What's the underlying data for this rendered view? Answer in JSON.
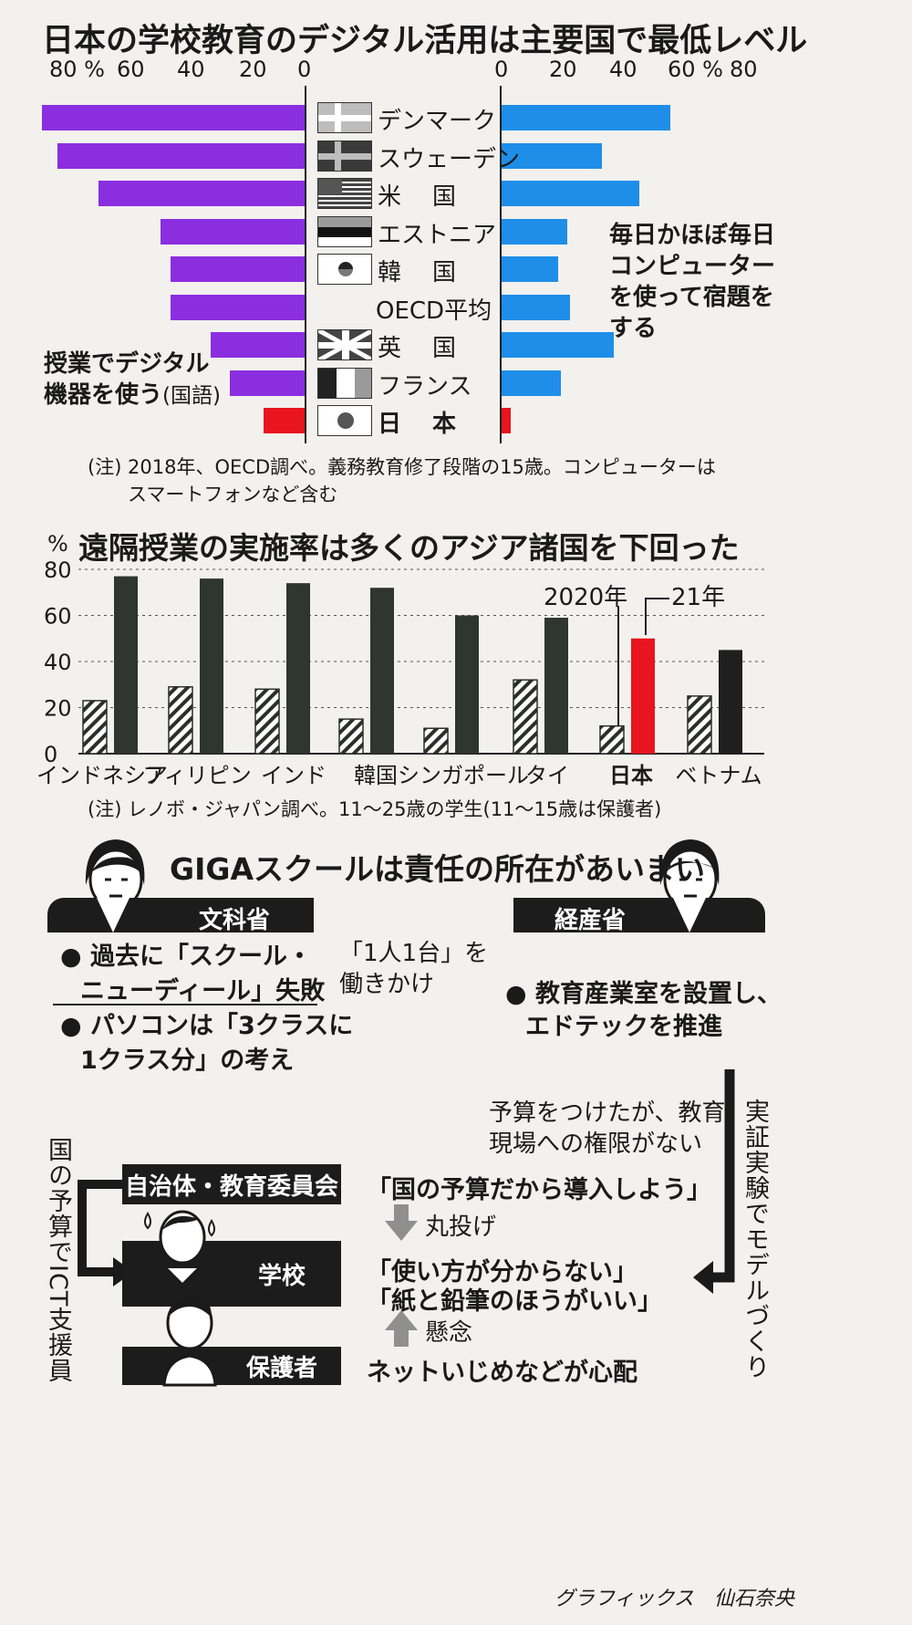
{
  "chart1": {
    "title": "日本の学校教育のデジタル活用は主要国で最低レベル",
    "left_ticks": [
      "80 %",
      "60",
      "40",
      "20",
      "0"
    ],
    "right_ticks": [
      "0",
      "20",
      "40",
      "60 %",
      "80"
    ],
    "left_label": "授業でデジタル機器を使う",
    "left_label_line1": "授業でデジタル",
    "left_label_line2": "機器を使う",
    "left_label_suffix": "(国語)",
    "right_label_line1": "毎日かほぼ毎日",
    "right_label_line2": "コンピューター",
    "right_label_line3": "を使って宿題を",
    "right_label_line4": "する",
    "note_line1": "(注) 2018年、OECD調べ。義務教育修了段階の15歳。コンピューターは",
    "note_line2": "スマートフォンなど含む",
    "colors": {
      "left": "#8b2ee0",
      "right": "#1f8ee8",
      "japan": "#e8141e"
    }
  },
  "chart2": {
    "title": "遠隔授業の実施率は多くのアジア諸国を下回った",
    "unit": "%",
    "yticks": [
      "80",
      "60",
      "40",
      "20",
      "0"
    ],
    "legend_2020": "2020年",
    "legend_21": "21年",
    "note": "(注) レノボ・ジャパン調べ。11〜25歳の学生(11〜15歳は保護者)"
  },
  "chart_data": [
    {
      "type": "bar",
      "orientation": "horizontal",
      "categories": [
        "デンマーク",
        "スウェーデン",
        "米国",
        "エストニア",
        "韓国",
        "OECD平均",
        "英国",
        "フランス",
        "日本"
      ],
      "series": [
        {
          "name": "授業でデジタル機器を使う(国語)",
          "values": [
            84,
            79,
            66,
            46,
            43,
            43,
            30,
            24,
            13
          ]
        },
        {
          "name": "毎日かほぼ毎日コンピューターを使って宿題をする",
          "values": [
            54,
            32,
            44,
            21,
            18,
            22,
            36,
            19,
            3
          ]
        }
      ],
      "xlim": [
        0,
        80
      ]
    },
    {
      "type": "bar",
      "categories": [
        "インドネシア",
        "フィリピン",
        "インド",
        "韓国",
        "シンガポール",
        "タイ",
        "日本",
        "ベトナム"
      ],
      "series": [
        {
          "name": "2020年",
          "values": [
            23,
            29,
            28,
            15,
            11,
            32,
            12,
            25
          ]
        },
        {
          "name": "21年",
          "values": [
            77,
            76,
            74,
            72,
            60,
            59,
            50,
            45
          ]
        }
      ],
      "ylim": [
        0,
        80
      ],
      "highlight": "日本"
    }
  ],
  "section3": {
    "title": "GIGAスクールは責任の所在があいまい",
    "monka": "文科省",
    "keisan": "経産省",
    "monka_bullet1_line1": "過去に「スクール・",
    "monka_bullet1_line2": "ニューディール」失敗",
    "monka_bullet2_line1": "パソコンは「3クラスに",
    "monka_bullet2_line2": "1クラス分」の考え",
    "center_line1": "「1人1台」を",
    "center_line2": "働きかけ",
    "keisan_bullet_line1": "教育産業室を設置し、",
    "keisan_bullet_line2": "エドテックを推進",
    "budget_line1": "予算をつけたが、教育",
    "budget_line2": "現場への権限がない",
    "right_vertical": "実証実験でモデルづくり",
    "left_vertical": "国の予算でICT支援員",
    "jichitai": "自治体・教育委員会",
    "gakko": "学校",
    "hogosha": "保護者",
    "quote1": "「国の予算だから導入しよう」",
    "marunage": "丸投げ",
    "quote2": "「使い方が分からない」",
    "quote3": "「紙と鉛筆のほうがいい」",
    "kenen": "懸念",
    "quote4": "ネットいじめなどが心配",
    "credit": "グラフィックス　仙石奈央"
  }
}
